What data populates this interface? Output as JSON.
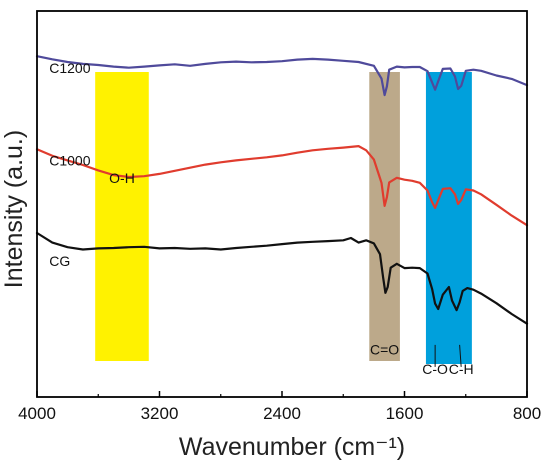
{
  "chart_data": {
    "type": "line",
    "xlabel": "Wavenumber (cm⁻¹)",
    "ylabel": "Intensity (a.u.)",
    "xlim": [
      4000,
      800
    ],
    "x_reversed": true,
    "ylim": [
      0,
      100
    ],
    "x_ticks": [
      {
        "value": 4000,
        "label": "4000"
      },
      {
        "value": 3200,
        "label": "3200"
      },
      {
        "value": 2400,
        "label": "2400"
      },
      {
        "value": 1600,
        "label": "1600"
      },
      {
        "value": 800,
        "label": "800"
      }
    ],
    "grid": false,
    "bands": [
      {
        "name": "O-H",
        "x_range": [
          3620,
          3270
        ],
        "color": "#FFF200",
        "label": "O-H",
        "label_x": 3445,
        "label_y": 55.5
      },
      {
        "name": "C=O",
        "x_range": [
          1830,
          1630
        ],
        "color": "#BCA98A",
        "label": "C=O",
        "label_x": 1730,
        "label_y": 11
      },
      {
        "name": "C-O / C-H",
        "x_range": [
          1460,
          1160
        ],
        "color": "#00A0DC",
        "labels": [
          {
            "label": "C-O",
            "label_x": 1400,
            "label_y": 6
          },
          {
            "label": "C-H",
            "label_x": 1230,
            "label_y": 6
          }
        ]
      }
    ],
    "series": [
      {
        "name": "C1200",
        "color": "#4F4A9B",
        "label_x": 3920,
        "label_y": 84,
        "x": [
          4000,
          3900,
          3800,
          3700,
          3600,
          3500,
          3400,
          3300,
          3200,
          3100,
          3000,
          2900,
          2800,
          2700,
          2600,
          2500,
          2400,
          2300,
          2200,
          2100,
          2000,
          1900,
          1800,
          1750,
          1730,
          1715,
          1700,
          1650,
          1600,
          1550,
          1500,
          1450,
          1420,
          1400,
          1380,
          1350,
          1300,
          1270,
          1250,
          1230,
          1200,
          1150,
          1100,
          1000,
          900,
          800
        ],
        "y": [
          88.3,
          87.5,
          86.8,
          86.3,
          86.0,
          85.6,
          85.3,
          85.6,
          85.9,
          86.2,
          85.8,
          86.3,
          86.7,
          86.9,
          86.7,
          86.8,
          87.0,
          87.4,
          87.6,
          87.4,
          87.1,
          86.8,
          85.8,
          82.5,
          78.2,
          80.5,
          84.8,
          85.6,
          85.4,
          85.5,
          85.5,
          84.4,
          81.5,
          79.6,
          81.8,
          85.0,
          85.1,
          83.0,
          79.8,
          80.6,
          84.5,
          84.8,
          84.5,
          83.3,
          82.4,
          80.8
        ]
      },
      {
        "name": "C1000",
        "color": "#E03C2E",
        "label_x": 3920,
        "label_y": 60,
        "x": [
          4000,
          3900,
          3800,
          3700,
          3600,
          3500,
          3400,
          3300,
          3200,
          3100,
          3000,
          2900,
          2800,
          2700,
          2600,
          2500,
          2400,
          2300,
          2200,
          2100,
          2000,
          1950,
          1900,
          1850,
          1800,
          1750,
          1730,
          1715,
          1700,
          1650,
          1600,
          1550,
          1500,
          1450,
          1420,
          1400,
          1380,
          1350,
          1300,
          1270,
          1250,
          1230,
          1200,
          1150,
          1100,
          1000,
          900,
          800
        ],
        "y": [
          64.2,
          62.5,
          61.3,
          60.1,
          58.7,
          57.5,
          57.0,
          57.2,
          57.8,
          58.6,
          59.4,
          60.2,
          60.8,
          61.3,
          61.7,
          62.1,
          62.6,
          63.3,
          63.9,
          64.3,
          64.6,
          64.8,
          65.0,
          63.9,
          61.5,
          55.5,
          49.5,
          51.8,
          55.6,
          56.8,
          56.3,
          56.0,
          55.5,
          53.5,
          50.5,
          49.0,
          51.0,
          53.9,
          54.1,
          52.5,
          50.0,
          51.0,
          53.8,
          53.5,
          52.5,
          49.8,
          47.0,
          44.5
        ]
      },
      {
        "name": "CG",
        "color": "#111111",
        "label_x": 3920,
        "label_y": 34,
        "x": [
          4000,
          3900,
          3800,
          3700,
          3600,
          3500,
          3400,
          3300,
          3200,
          3100,
          3000,
          2900,
          2800,
          2700,
          2600,
          2500,
          2400,
          2300,
          2200,
          2100,
          2000,
          1950,
          1900,
          1850,
          1800,
          1760,
          1740,
          1725,
          1710,
          1690,
          1650,
          1600,
          1550,
          1500,
          1450,
          1420,
          1400,
          1380,
          1350,
          1310,
          1290,
          1260,
          1240,
          1220,
          1190,
          1150,
          1100,
          1000,
          900,
          800
        ],
        "y": [
          42.5,
          40.0,
          38.8,
          38.2,
          38.5,
          38.6,
          38.8,
          38.9,
          38.5,
          38.6,
          38.4,
          38.5,
          38.2,
          38.6,
          38.9,
          39.2,
          39.6,
          40.0,
          40.2,
          40.4,
          40.6,
          41.2,
          40.0,
          40.6,
          39.8,
          37.0,
          31.0,
          27.0,
          28.5,
          33.5,
          34.5,
          33.4,
          33.5,
          33.4,
          32.0,
          28.0,
          24.2,
          22.8,
          26.5,
          28.5,
          25.0,
          22.5,
          24.5,
          27.5,
          28.2,
          27.8,
          26.8,
          24.3,
          21.5,
          19.0
        ]
      }
    ]
  }
}
